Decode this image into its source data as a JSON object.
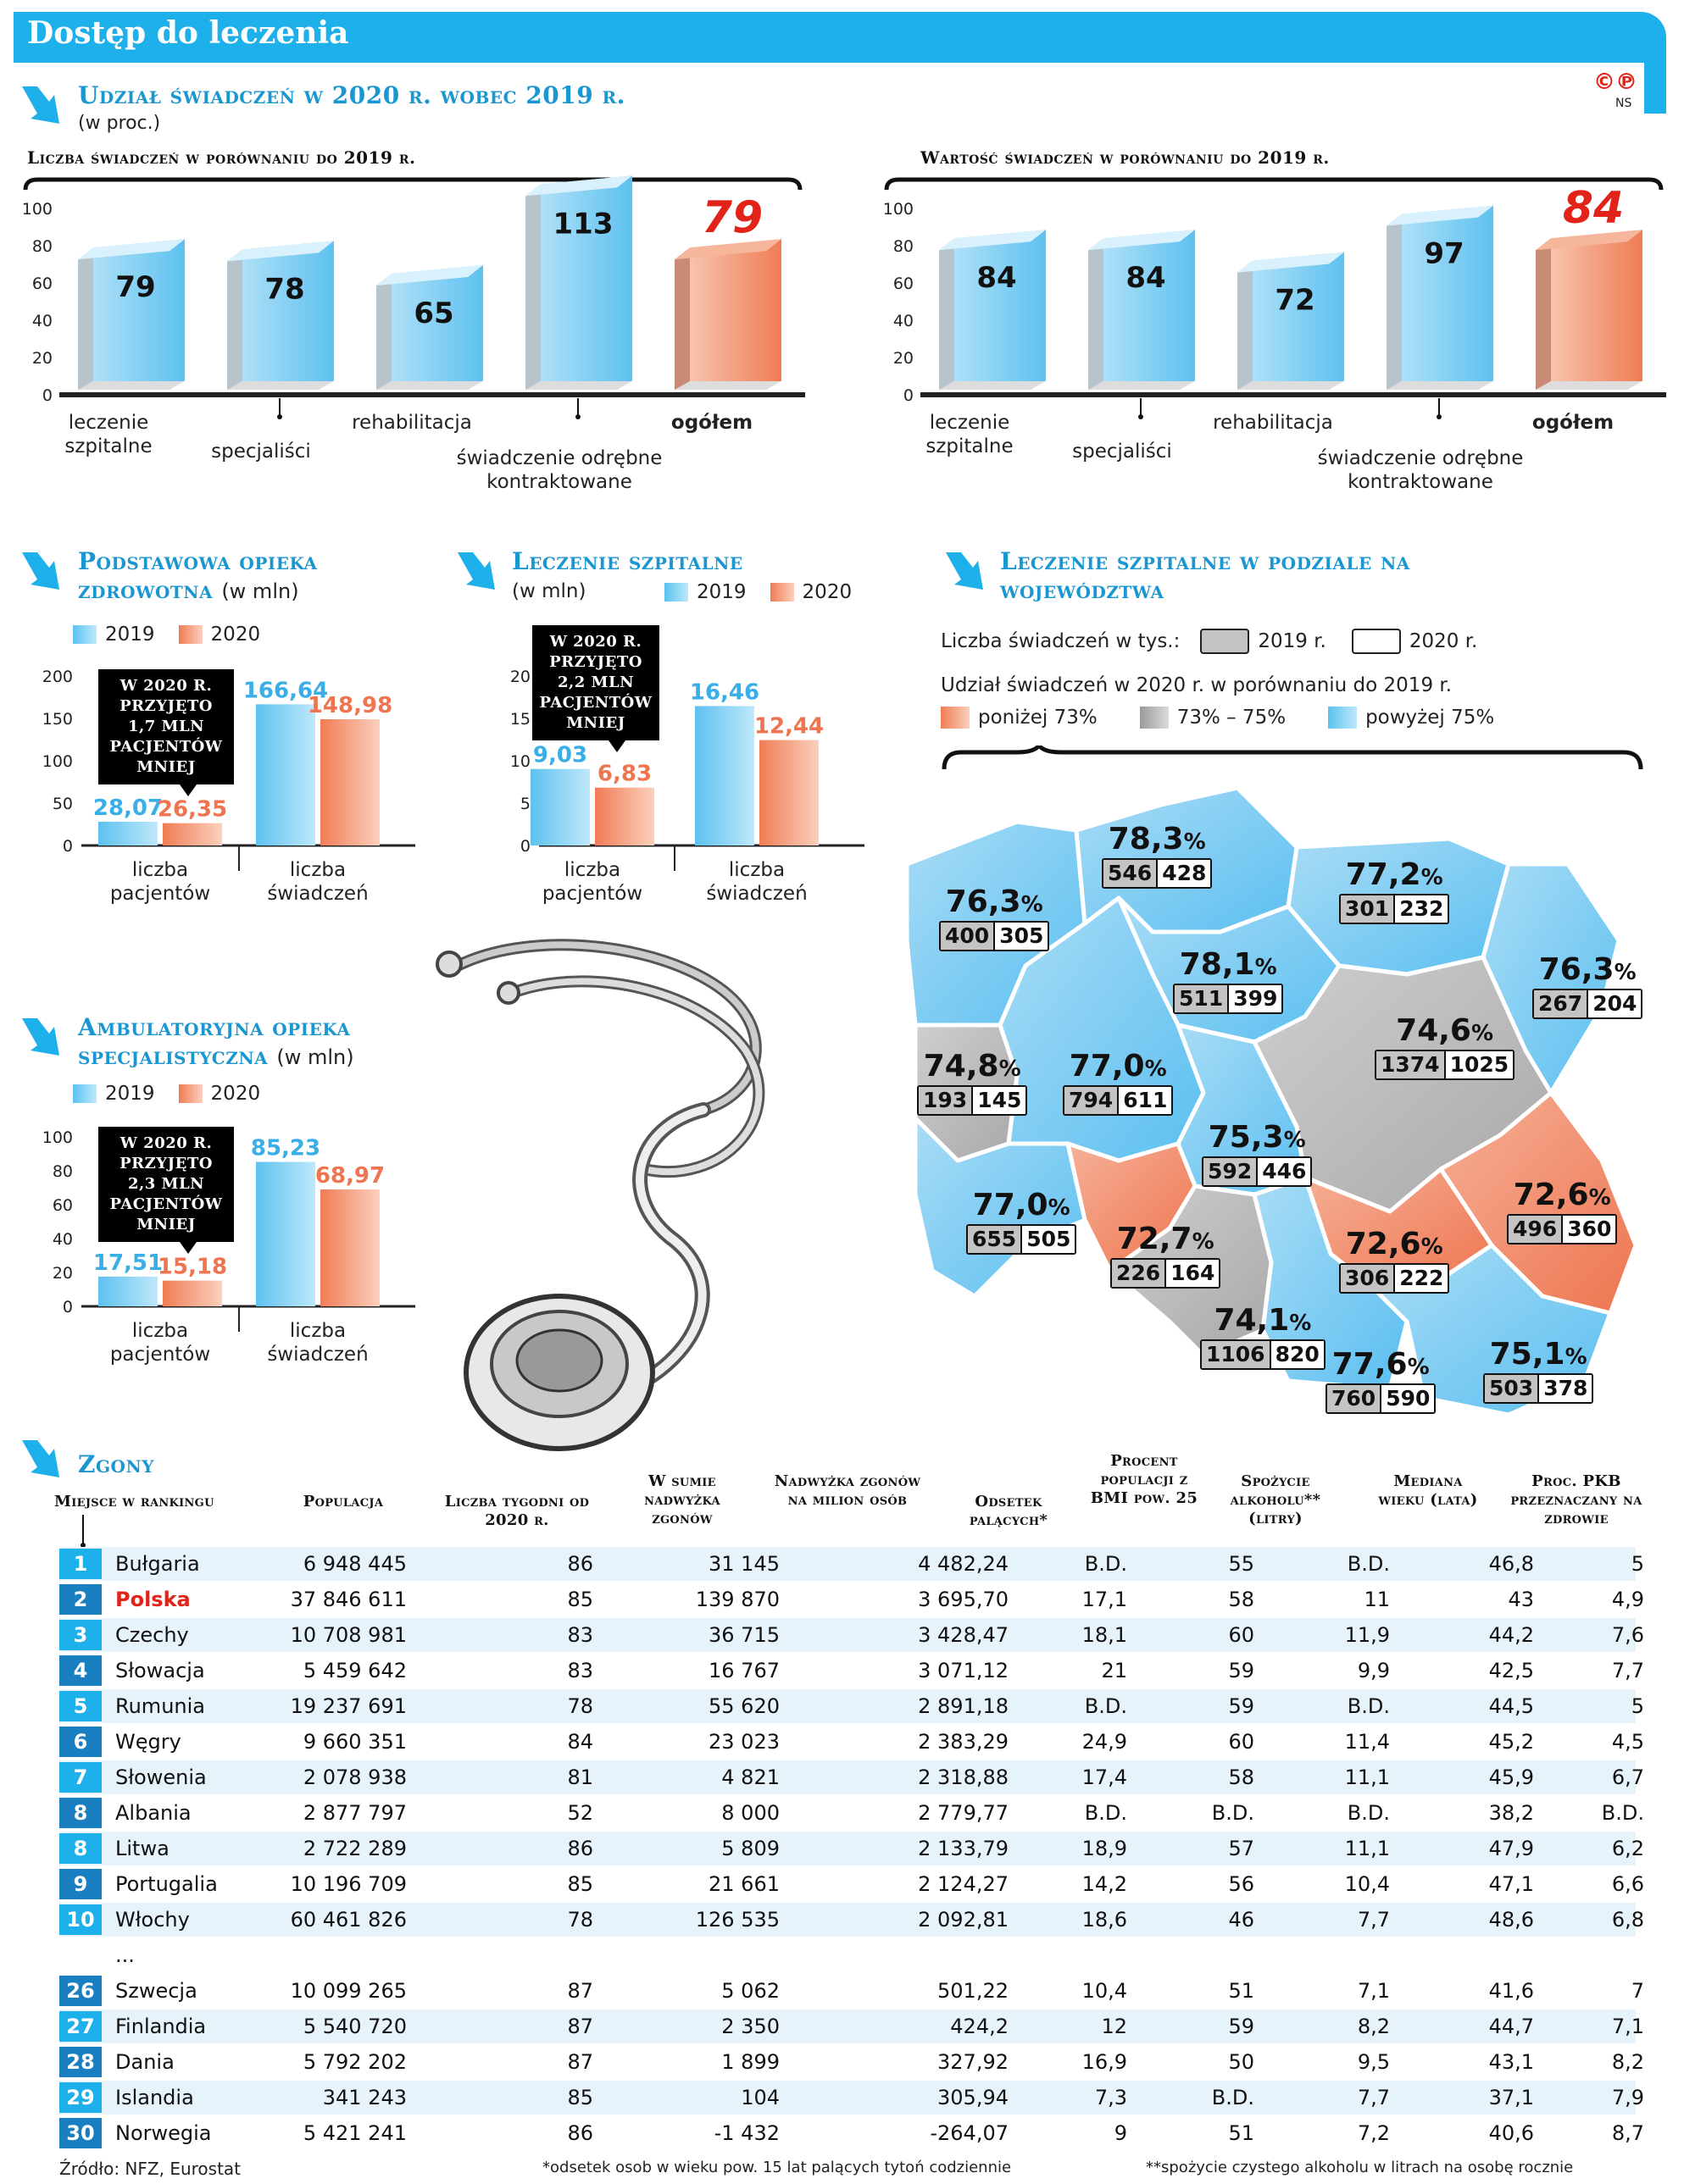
{
  "header": {
    "title": "Dostęp do leczenia",
    "logo": "©℗",
    "author": "NS"
  },
  "colors": {
    "accent": "#1eb0ea",
    "title_blue": "#1a96d0",
    "bar_blue": "#7fd3f6",
    "bar_orange": "#f29b7b",
    "highlight_red": "#e2231a",
    "map_blue": "#8fd2f4",
    "map_grey": "#bdbdbd",
    "map_orange": "#f08a65"
  },
  "share": {
    "title": "Udział świadczeń w 2020 r. wobec 2019 r.",
    "unit": "(w proc.)",
    "count_subtitle": "Liczba świadczeń w porównaniu do 2019 r.",
    "value_subtitle": "Wartość świadczeń w porównaniu do 2019 r."
  },
  "chart_data": [
    {
      "type": "bar",
      "id": "count",
      "title": "Liczba świadczeń w porównaniu do 2019 r.",
      "categories": [
        "leczenie szpitalne",
        "specjaliści",
        "rehabilitacja",
        "świadczenie odrębne kontraktowane",
        "ogółem"
      ],
      "values": [
        79,
        78,
        65,
        113,
        79
      ],
      "value_labels": [
        "79",
        "78",
        "65",
        "113",
        "79"
      ],
      "highlight": [
        false,
        false,
        false,
        false,
        true
      ],
      "yticks": [
        "0",
        "20",
        "40",
        "60",
        "80",
        "100"
      ],
      "ylim": [
        0,
        120
      ]
    },
    {
      "type": "bar",
      "id": "value",
      "title": "Wartość świadczeń w porównaniu do 2019 r.",
      "categories": [
        "leczenie szpitalne",
        "specjaliści",
        "rehabilitacja",
        "świadczenie odrębne kontraktowane",
        "ogółem"
      ],
      "values": [
        84,
        84,
        72,
        97,
        84
      ],
      "value_labels": [
        "84",
        "84",
        "72",
        "97",
        "84"
      ],
      "highlight": [
        false,
        false,
        false,
        false,
        true
      ],
      "yticks": [
        "0",
        "20",
        "40",
        "60",
        "80",
        "100"
      ],
      "ylim": [
        0,
        120
      ]
    },
    {
      "type": "bar",
      "id": "poz",
      "title": "Podstawowa opieka zdrowotna",
      "unit": "(w mln)",
      "categories": [
        "liczba pacjentów",
        "liczba świadczeń"
      ],
      "series": [
        {
          "name": "2019",
          "values": [
            28.07,
            166.64
          ],
          "labels": [
            "28,07",
            "166,64"
          ]
        },
        {
          "name": "2020",
          "values": [
            26.35,
            148.98
          ],
          "labels": [
            "26,35",
            "148,98"
          ]
        }
      ],
      "yticks": [
        "0",
        "50",
        "100",
        "150",
        "200"
      ],
      "ylim": [
        0,
        200
      ],
      "callout": "W 2020 r. przyjęto 1,7 mln pacjentów mniej"
    },
    {
      "type": "bar",
      "id": "szpital",
      "title": "Leczenie szpitalne",
      "unit": "(w mln)",
      "categories": [
        "liczba pacjentów",
        "liczba świadczeń"
      ],
      "series": [
        {
          "name": "2019",
          "values": [
            9.03,
            16.46
          ],
          "labels": [
            "9,03",
            "16,46"
          ]
        },
        {
          "name": "2020",
          "values": [
            6.83,
            12.44
          ],
          "labels": [
            "6,83",
            "12,44"
          ]
        }
      ],
      "yticks": [
        "0",
        "5",
        "10",
        "15",
        "20"
      ],
      "ylim": [
        0,
        20
      ],
      "callout": "W 2020 r. przyjęto 2,2 mln pacjentów mniej"
    },
    {
      "type": "bar",
      "id": "aos",
      "title": "Ambulatoryjna opieka specjalistyczna",
      "unit": "(w mln)",
      "categories": [
        "liczba pacjentów",
        "liczba świadczeń"
      ],
      "series": [
        {
          "name": "2019",
          "values": [
            17.51,
            85.23
          ],
          "labels": [
            "17,51",
            "85,23"
          ]
        },
        {
          "name": "2020",
          "values": [
            15.18,
            68.97
          ],
          "labels": [
            "15,18",
            "68,97"
          ]
        }
      ],
      "yticks": [
        "0",
        "20",
        "40",
        "60",
        "80",
        "100"
      ],
      "ylim": [
        0,
        100
      ],
      "callout": "W 2020 r. przyjęto 2,3 mln pacjentów mniej"
    }
  ],
  "poz": {
    "title": "Podstawowa opieka zdrowotna",
    "unit": "(w mln)"
  },
  "szpital": {
    "title": "Leczenie szpitalne",
    "unit": "(w mln)"
  },
  "aos": {
    "title": "Ambulatoryjna opieka specjalistyczna",
    "unit": "(w mln)"
  },
  "legend": {
    "y2019": "2019",
    "y2020": "2020"
  },
  "map": {
    "title": "Leczenie szpitalne w podziale na województwa",
    "count_label": "Liczba świadczeń w tys.:",
    "count_2019": "2019 r.",
    "count_2020": "2020 r.",
    "share_label": "Udział świadczeń w 2020 r. w porównaniu do 2019 r.",
    "legend_low": "poniżej 73%",
    "legend_mid": "73% – 75%",
    "legend_high": "powyżej 75%",
    "regions": [
      {
        "pct": "78,3",
        "v2019": "546",
        "v2020": "428"
      },
      {
        "pct": "77,2",
        "v2019": "301",
        "v2020": "232"
      },
      {
        "pct": "76,3",
        "v2019": "400",
        "v2020": "305"
      },
      {
        "pct": "78,1",
        "v2019": "511",
        "v2020": "399"
      },
      {
        "pct": "76,3",
        "v2019": "267",
        "v2020": "204"
      },
      {
        "pct": "74,6",
        "v2019": "1374",
        "v2020": "1025"
      },
      {
        "pct": "74,8",
        "v2019": "193",
        "v2020": "145"
      },
      {
        "pct": "77,0",
        "v2019": "794",
        "v2020": "611"
      },
      {
        "pct": "75,3",
        "v2019": "592",
        "v2020": "446"
      },
      {
        "pct": "72,6",
        "v2019": "496",
        "v2020": "360"
      },
      {
        "pct": "77,0",
        "v2019": "655",
        "v2020": "505"
      },
      {
        "pct": "72,7",
        "v2019": "226",
        "v2020": "164"
      },
      {
        "pct": "72,6",
        "v2019": "306",
        "v2020": "222"
      },
      {
        "pct": "74,1",
        "v2019": "1106",
        "v2020": "820"
      },
      {
        "pct": "77,6",
        "v2019": "760",
        "v2020": "590"
      },
      {
        "pct": "75,1",
        "v2019": "503",
        "v2020": "378"
      }
    ]
  },
  "deaths": {
    "title": "Zgony",
    "columns": [
      "Miejsce w rankingu",
      "Populacja",
      "Liczba tygodni od 2020 r.",
      "W sumie nadwyżka zgonów",
      "Nadwyżka zgonów na milion osób",
      "Odsetek palących*",
      "Procent populacji z BMI pow. 25",
      "Spożycie alkoholu** (litry)",
      "Mediana wieku (lata)",
      "Proc. PKB przeznaczany na zdrowie"
    ],
    "ellipsis": "...",
    "rows": [
      {
        "rank": "1",
        "country": "Bułgaria",
        "pop": "6 948 445",
        "weeks": "86",
        "excess": "31 145",
        "permil": "4 482,24",
        "smoke": "B.D.",
        "bmi": "55",
        "alc": "B.D.",
        "age": "46,8",
        "gdp": "5"
      },
      {
        "rank": "2",
        "country": "Polska",
        "pop": "37 846 611",
        "weeks": "85",
        "excess": "139 870",
        "permil": "3 695,70",
        "smoke": "17,1",
        "bmi": "58",
        "alc": "11",
        "age": "43",
        "gdp": "4,9"
      },
      {
        "rank": "3",
        "country": "Czechy",
        "pop": "10 708 981",
        "weeks": "83",
        "excess": "36 715",
        "permil": "3 428,47",
        "smoke": "18,1",
        "bmi": "60",
        "alc": "11,9",
        "age": "44,2",
        "gdp": "7,6"
      },
      {
        "rank": "4",
        "country": "Słowacja",
        "pop": "5 459 642",
        "weeks": "83",
        "excess": "16 767",
        "permil": "3 071,12",
        "smoke": "21",
        "bmi": "59",
        "alc": "9,9",
        "age": "42,5",
        "gdp": "7,7"
      },
      {
        "rank": "5",
        "country": "Rumunia",
        "pop": "19 237 691",
        "weeks": "78",
        "excess": "55 620",
        "permil": "2 891,18",
        "smoke": "B.D.",
        "bmi": "59",
        "alc": "B.D.",
        "age": "44,5",
        "gdp": "5"
      },
      {
        "rank": "6",
        "country": "Węgry",
        "pop": "9 660 351",
        "weeks": "84",
        "excess": "23 023",
        "permil": "2 383,29",
        "smoke": "24,9",
        "bmi": "60",
        "alc": "11,4",
        "age": "45,2",
        "gdp": "4,5"
      },
      {
        "rank": "7",
        "country": "Słowenia",
        "pop": "2 078 938",
        "weeks": "81",
        "excess": "4 821",
        "permil": "2 318,88",
        "smoke": "17,4",
        "bmi": "58",
        "alc": "11,1",
        "age": "45,9",
        "gdp": "6,7"
      },
      {
        "rank": "8",
        "country": "Albania",
        "pop": "2 877 797",
        "weeks": "52",
        "excess": "8 000",
        "permil": "2 779,77",
        "smoke": "B.D.",
        "bmi": "B.D.",
        "alc": "B.D.",
        "age": "38,2",
        "gdp": "B.D."
      },
      {
        "rank": "8",
        "country": "Litwa",
        "pop": "2 722 289",
        "weeks": "86",
        "excess": "5 809",
        "permil": "2 133,79",
        "smoke": "18,9",
        "bmi": "57",
        "alc": "11,1",
        "age": "47,9",
        "gdp": "6,2"
      },
      {
        "rank": "9",
        "country": "Portugalia",
        "pop": "10 196 709",
        "weeks": "85",
        "excess": "21 661",
        "permil": "2 124,27",
        "smoke": "14,2",
        "bmi": "56",
        "alc": "10,4",
        "age": "47,1",
        "gdp": "6,6"
      },
      {
        "rank": "10",
        "country": "Włochy",
        "pop": "60 461 826",
        "weeks": "78",
        "excess": "126 535",
        "permil": "2 092,81",
        "smoke": "18,6",
        "bmi": "46",
        "alc": "7,7",
        "age": "48,6",
        "gdp": "6,8"
      },
      {
        "rank": "26",
        "country": "Szwecja",
        "pop": "10 099 265",
        "weeks": "87",
        "excess": "5 062",
        "permil": "501,22",
        "smoke": "10,4",
        "bmi": "51",
        "alc": "7,1",
        "age": "41,6",
        "gdp": "7"
      },
      {
        "rank": "27",
        "country": "Finlandia",
        "pop": "5 540 720",
        "weeks": "87",
        "excess": "2 350",
        "permil": "424,2",
        "smoke": "12",
        "bmi": "59",
        "alc": "8,2",
        "age": "44,7",
        "gdp": "7,1"
      },
      {
        "rank": "28",
        "country": "Dania",
        "pop": "5 792 202",
        "weeks": "87",
        "excess": "1 899",
        "permil": "327,92",
        "smoke": "16,9",
        "bmi": "50",
        "alc": "9,5",
        "age": "43,1",
        "gdp": "8,2"
      },
      {
        "rank": "29",
        "country": "Islandia",
        "pop": "341 243",
        "weeks": "85",
        "excess": "104",
        "permil": "305,94",
        "smoke": "7,3",
        "bmi": "B.D.",
        "alc": "7,7",
        "age": "37,1",
        "gdp": "7,9"
      },
      {
        "rank": "30",
        "country": "Norwegia",
        "pop": "5 421 241",
        "weeks": "86",
        "excess": "-1 432",
        "permil": "-264,07",
        "smoke": "9",
        "bmi": "51",
        "alc": "7,2",
        "age": "40,6",
        "gdp": "8,7"
      }
    ]
  },
  "footer": {
    "source": "Źródło: NFZ, Eurostat",
    "note1": "*odsetek osob w wieku pow. 15 lat palących tytoń codziennie",
    "note2": "**spożycie czystego alkoholu w litrach na osobę rocznie"
  }
}
